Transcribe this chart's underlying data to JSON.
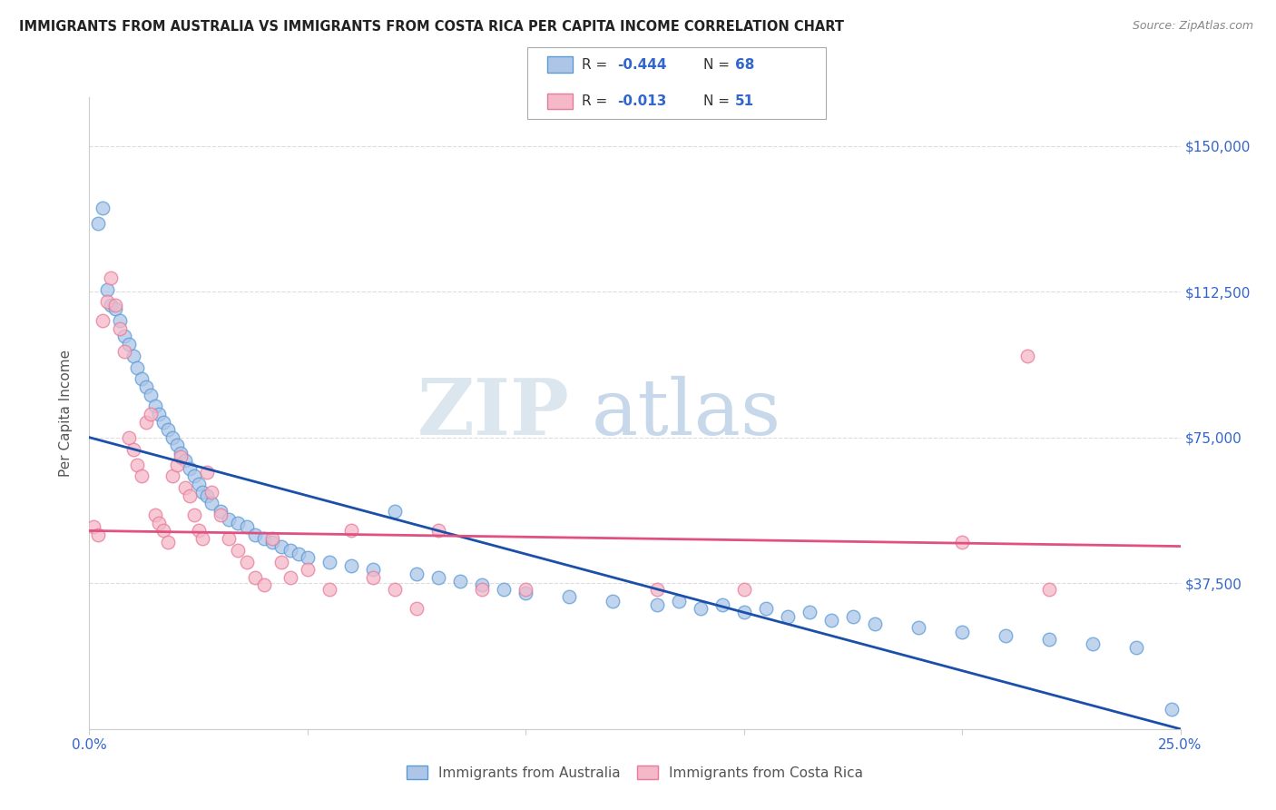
{
  "title": "IMMIGRANTS FROM AUSTRALIA VS IMMIGRANTS FROM COSTA RICA PER CAPITA INCOME CORRELATION CHART",
  "source": "Source: ZipAtlas.com",
  "ylabel": "Per Capita Income",
  "xlim": [
    0.0,
    0.25
  ],
  "ylim": [
    0,
    162500
  ],
  "ytick_vals": [
    0,
    37500,
    75000,
    112500,
    150000
  ],
  "ytick_labels": [
    "",
    "$37,500",
    "$75,000",
    "$112,500",
    "$150,000"
  ],
  "xtick_vals": [
    0.0,
    0.05,
    0.1,
    0.15,
    0.2,
    0.25
  ],
  "xtick_labels": [
    "0.0%",
    "",
    "",
    "",
    "",
    "25.0%"
  ],
  "australia_color": "#adc6e8",
  "australia_edge": "#5b9bd5",
  "costa_rica_color": "#f4b8c8",
  "costa_rica_edge": "#e87a9a",
  "reg_aus_color": "#1a4faa",
  "reg_cr_color": "#e05080",
  "legend_label_australia": "Immigrants from Australia",
  "legend_label_costa_rica": "Immigrants from Costa Rica",
  "watermark_zip": "ZIP",
  "watermark_atlas": "atlas",
  "watermark_color_zip": "#d0dce8",
  "watermark_color_atlas": "#c0d0e0",
  "title_color": "#222222",
  "axis_label_color": "#555555",
  "tick_color": "#3366cc",
  "grid_color": "#dddddd",
  "aus_x": [
    0.002,
    0.003,
    0.004,
    0.005,
    0.006,
    0.007,
    0.008,
    0.009,
    0.01,
    0.011,
    0.012,
    0.013,
    0.014,
    0.015,
    0.016,
    0.017,
    0.018,
    0.019,
    0.02,
    0.021,
    0.022,
    0.023,
    0.024,
    0.025,
    0.026,
    0.027,
    0.028,
    0.03,
    0.032,
    0.034,
    0.036,
    0.038,
    0.04,
    0.042,
    0.044,
    0.046,
    0.048,
    0.05,
    0.055,
    0.06,
    0.065,
    0.07,
    0.075,
    0.08,
    0.085,
    0.09,
    0.095,
    0.1,
    0.11,
    0.12,
    0.13,
    0.14,
    0.15,
    0.16,
    0.17,
    0.18,
    0.19,
    0.2,
    0.21,
    0.22,
    0.23,
    0.24,
    0.248,
    0.135,
    0.145,
    0.155,
    0.165,
    0.175
  ],
  "aus_y": [
    130000,
    134000,
    113000,
    109000,
    108000,
    105000,
    101000,
    99000,
    96000,
    93000,
    90000,
    88000,
    86000,
    83000,
    81000,
    79000,
    77000,
    75000,
    73000,
    71000,
    69000,
    67000,
    65000,
    63000,
    61000,
    60000,
    58000,
    56000,
    54000,
    53000,
    52000,
    50000,
    49000,
    48000,
    47000,
    46000,
    45000,
    44000,
    43000,
    42000,
    41000,
    56000,
    40000,
    39000,
    38000,
    37000,
    36000,
    35000,
    34000,
    33000,
    32000,
    31000,
    30000,
    29000,
    28000,
    27000,
    26000,
    25000,
    24000,
    23000,
    22000,
    21000,
    5000,
    33000,
    32000,
    31000,
    30000,
    29000
  ],
  "cr_x": [
    0.001,
    0.002,
    0.003,
    0.004,
    0.005,
    0.006,
    0.007,
    0.008,
    0.009,
    0.01,
    0.011,
    0.012,
    0.013,
    0.014,
    0.015,
    0.016,
    0.017,
    0.018,
    0.019,
    0.02,
    0.021,
    0.022,
    0.023,
    0.024,
    0.025,
    0.026,
    0.027,
    0.028,
    0.03,
    0.032,
    0.034,
    0.036,
    0.038,
    0.04,
    0.042,
    0.044,
    0.046,
    0.05,
    0.055,
    0.06,
    0.065,
    0.07,
    0.075,
    0.08,
    0.09,
    0.1,
    0.13,
    0.15,
    0.2,
    0.215,
    0.22
  ],
  "cr_y": [
    52000,
    50000,
    105000,
    110000,
    116000,
    109000,
    103000,
    97000,
    75000,
    72000,
    68000,
    65000,
    79000,
    81000,
    55000,
    53000,
    51000,
    48000,
    65000,
    68000,
    70000,
    62000,
    60000,
    55000,
    51000,
    49000,
    66000,
    61000,
    55000,
    49000,
    46000,
    43000,
    39000,
    37000,
    49000,
    43000,
    39000,
    41000,
    36000,
    51000,
    39000,
    36000,
    31000,
    51000,
    36000,
    36000,
    36000,
    36000,
    48000,
    96000,
    36000
  ]
}
